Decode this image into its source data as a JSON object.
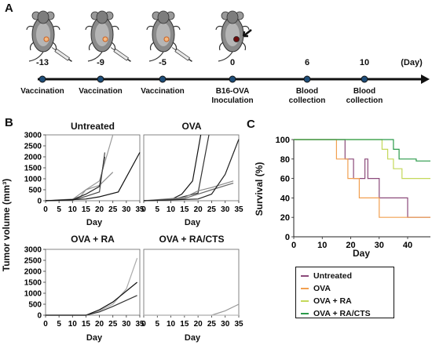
{
  "panels": {
    "a": "A",
    "b": "B",
    "c": "C"
  },
  "timeline": {
    "unit_label": "(Day)",
    "events": [
      {
        "day": "-13",
        "label": "Vaccination",
        "label2": ""
      },
      {
        "day": "-9",
        "label": "Vaccination",
        "label2": ""
      },
      {
        "day": "-5",
        "label": "Vaccination",
        "label2": ""
      },
      {
        "day": "0",
        "label": "B16-OVA",
        "label2": "Inoculation"
      },
      {
        "day": "6",
        "label": "Blood",
        "label2": "collection"
      },
      {
        "day": "10",
        "label": "Blood",
        "label2": "collection"
      }
    ],
    "icons": [
      "mouse-syringe-icon",
      "mouse-syringe-icon",
      "mouse-syringe-icon",
      "mouse-tumor-icon"
    ]
  },
  "tumor": {
    "ylabel": "Tumor volume (mm³)",
    "xlabel": "Day",
    "yticks": [
      "3000",
      "2500",
      "2000",
      "1500",
      "1000",
      "500",
      "0"
    ],
    "xticks": [
      "0",
      "5",
      "10",
      "15",
      "20",
      "25",
      "30",
      "35"
    ]
  },
  "chart_data": [
    {
      "type": "line",
      "title": "Untreated",
      "xlabel": "Day",
      "ylabel": "Tumor volume (mm³)",
      "xlim": [
        0,
        35
      ],
      "ylim": [
        0,
        3000
      ],
      "series": [
        {
          "values": [
            [
              0,
              0
            ],
            [
              10,
              80
            ],
            [
              13,
              200
            ],
            [
              15,
              500
            ],
            [
              20,
              900
            ],
            [
              25,
              3000
            ]
          ],
          "color": "#9a9a9a"
        },
        {
          "values": [
            [
              0,
              0
            ],
            [
              10,
              60
            ],
            [
              15,
              500
            ],
            [
              20,
              700
            ],
            [
              25,
              1300
            ]
          ],
          "color": "#8c8c8c"
        },
        {
          "values": [
            [
              0,
              0
            ],
            [
              10,
              40
            ],
            [
              15,
              300
            ],
            [
              20,
              650
            ],
            [
              22,
              2000
            ]
          ],
          "color": "#222222"
        },
        {
          "values": [
            [
              0,
              0
            ],
            [
              10,
              30
            ],
            [
              15,
              200
            ],
            [
              20,
              400
            ],
            [
              22,
              2200
            ]
          ],
          "color": "#444444"
        },
        {
          "values": [
            [
              0,
              0
            ],
            [
              15,
              80
            ],
            [
              20,
              180
            ],
            [
              27,
              400
            ],
            [
              35,
              2200
            ]
          ],
          "color": "#111111"
        }
      ]
    },
    {
      "type": "line",
      "title": "OVA",
      "xlabel": "Day",
      "ylabel": "",
      "xlim": [
        0,
        35
      ],
      "ylim": [
        0,
        3000
      ],
      "series": [
        {
          "values": [
            [
              0,
              0
            ],
            [
              10,
              50
            ],
            [
              14,
              300
            ],
            [
              18,
              900
            ],
            [
              21,
              3000
            ]
          ],
          "color": "#111111"
        },
        {
          "values": [
            [
              0,
              0
            ],
            [
              10,
              40
            ],
            [
              15,
              200
            ],
            [
              20,
              350
            ],
            [
              24,
              3000
            ]
          ],
          "color": "#333333"
        },
        {
          "values": [
            [
              0,
              0
            ],
            [
              15,
              150
            ],
            [
              20,
              450
            ],
            [
              25,
              600
            ],
            [
              33,
              900
            ]
          ],
          "color": "#888888"
        },
        {
          "values": [
            [
              0,
              0
            ],
            [
              15,
              100
            ],
            [
              20,
              300
            ],
            [
              25,
              500
            ],
            [
              33,
              800
            ]
          ],
          "color": "#666666"
        },
        {
          "values": [
            [
              0,
              0
            ],
            [
              20,
              80
            ],
            [
              25,
              300
            ],
            [
              30,
              1200
            ],
            [
              35,
              2800
            ]
          ],
          "color": "#222222"
        }
      ]
    },
    {
      "type": "line",
      "title": "OVA + RA",
      "xlabel": "Day",
      "ylabel": "Tumor volume (mm³)",
      "xlim": [
        0,
        35
      ],
      "ylim": [
        0,
        3000
      ],
      "series": [
        {
          "values": [
            [
              0,
              0
            ],
            [
              15,
              0
            ],
            [
              20,
              200
            ],
            [
              25,
              500
            ],
            [
              30,
              1200
            ],
            [
              34,
              2600
            ]
          ],
          "color": "#aaaaaa"
        },
        {
          "values": [
            [
              0,
              0
            ],
            [
              15,
              0
            ],
            [
              20,
              250
            ],
            [
              25,
              600
            ],
            [
              34,
              1500
            ]
          ],
          "color": "#111111"
        },
        {
          "values": [
            [
              0,
              0
            ],
            [
              15,
              0
            ],
            [
              20,
              150
            ],
            [
              25,
              400
            ],
            [
              34,
              900
            ]
          ],
          "color": "#333333"
        }
      ]
    },
    {
      "type": "line",
      "title": "OVA + RA/CTS",
      "xlabel": "Day",
      "ylabel": "",
      "xlim": [
        0,
        35
      ],
      "ylim": [
        0,
        3000
      ],
      "series": [
        {
          "values": [
            [
              0,
              0
            ],
            [
              25,
              0
            ],
            [
              30,
              200
            ],
            [
              35,
              500
            ]
          ],
          "color": "#999999"
        },
        {
          "values": [
            [
              0,
              0
            ],
            [
              35,
              0
            ]
          ],
          "color": "#bbbbbb"
        }
      ]
    },
    {
      "type": "line",
      "title": "",
      "xlabel": "Day",
      "ylabel": "Survival (%)",
      "xlim": [
        0,
        48
      ],
      "ylim": [
        0,
        100
      ],
      "step": true,
      "series": [
        {
          "name": "Untreated",
          "color": "#8b4a7a",
          "values": [
            [
              0,
              100
            ],
            [
              18,
              100
            ],
            [
              18,
              80
            ],
            [
              21,
              80
            ],
            [
              21,
              60
            ],
            [
              25,
              60
            ],
            [
              25,
              80
            ],
            [
              26,
              80
            ],
            [
              26,
              60
            ],
            [
              30,
              60
            ],
            [
              30,
              40
            ],
            [
              40,
              40
            ],
            [
              40,
              20
            ],
            [
              48,
              20
            ]
          ]
        },
        {
          "name": "OVA",
          "color": "#f2a050",
          "values": [
            [
              0,
              100
            ],
            [
              15,
              100
            ],
            [
              15,
              80
            ],
            [
              19,
              80
            ],
            [
              19,
              60
            ],
            [
              23,
              60
            ],
            [
              23,
              40
            ],
            [
              30,
              40
            ],
            [
              30,
              20
            ],
            [
              48,
              20
            ]
          ]
        },
        {
          "name": "OVA + RA",
          "color": "#c4d85a",
          "values": [
            [
              0,
              100
            ],
            [
              31,
              100
            ],
            [
              31,
              90
            ],
            [
              33,
              90
            ],
            [
              33,
              80
            ],
            [
              35,
              80
            ],
            [
              35,
              70
            ],
            [
              38,
              70
            ],
            [
              38,
              60
            ],
            [
              48,
              60
            ]
          ]
        },
        {
          "name": "OVA + RA/CTS",
          "color": "#2a9a4a",
          "values": [
            [
              0,
              100
            ],
            [
              35,
              100
            ],
            [
              35,
              90
            ],
            [
              37,
              90
            ],
            [
              37,
              80
            ],
            [
              43,
              80
            ],
            [
              43,
              78
            ],
            [
              48,
              78
            ]
          ]
        }
      ],
      "xticks": [
        "0",
        "10",
        "20",
        "30",
        "40"
      ],
      "yticks": [
        "100",
        "80",
        "60",
        "40",
        "20",
        "0"
      ]
    }
  ]
}
